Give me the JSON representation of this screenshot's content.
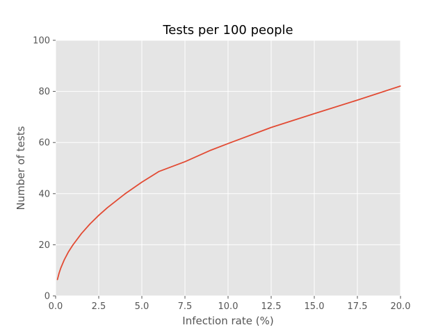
{
  "chart_data": {
    "type": "line",
    "title": "Tests per 100 people",
    "xlabel": "Infection rate (%)",
    "ylabel": "Number of tests",
    "xlim": [
      0.0,
      20.0
    ],
    "ylim": [
      0,
      100
    ],
    "x_ticks": [
      "0.0",
      "2.5",
      "5.0",
      "7.5",
      "10.0",
      "12.5",
      "15.0",
      "17.5",
      "20.0"
    ],
    "y_ticks": [
      "0",
      "20",
      "40",
      "60",
      "80",
      "100"
    ],
    "grid": true,
    "series": [
      {
        "color": "#E24A33",
        "x": [
          0.1,
          0.2,
          0.3,
          0.5,
          0.75,
          1.0,
          1.5,
          2.0,
          2.5,
          3.0,
          4.0,
          5.0,
          6.0,
          7.5,
          9.0,
          10.0,
          12.5,
          15.0,
          17.5,
          20.0
        ],
        "y": [
          6.3,
          8.9,
          10.9,
          14.1,
          17.3,
          19.9,
          24.4,
          28.2,
          31.5,
          34.5,
          39.8,
          44.5,
          48.7,
          52.5,
          57.0,
          59.6,
          65.9,
          71.3,
          76.6,
          82.1
        ]
      }
    ]
  }
}
